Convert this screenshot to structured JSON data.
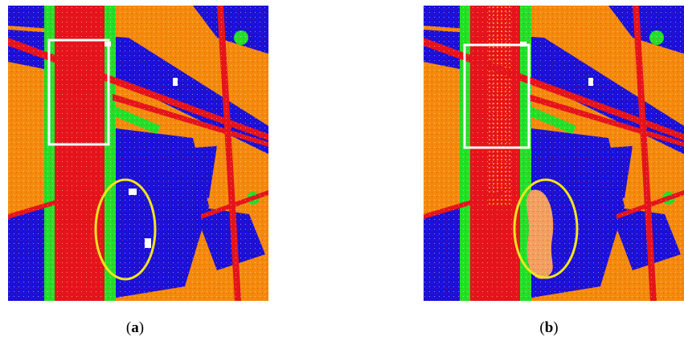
{
  "figure": {
    "panels": [
      {
        "id": "a",
        "caption_open": "(",
        "caption_letter": "a",
        "caption_close": ")"
      },
      {
        "id": "b",
        "caption_open": "(",
        "caption_letter": "b",
        "caption_close": ")"
      }
    ],
    "colors": {
      "orange": "#f48a0c",
      "blue": "#1a10d8",
      "red": "#e5141b",
      "green": "#22e028",
      "white": "#ffffff",
      "box": "#ffffff",
      "ellipse": "#f2e51c"
    }
  }
}
